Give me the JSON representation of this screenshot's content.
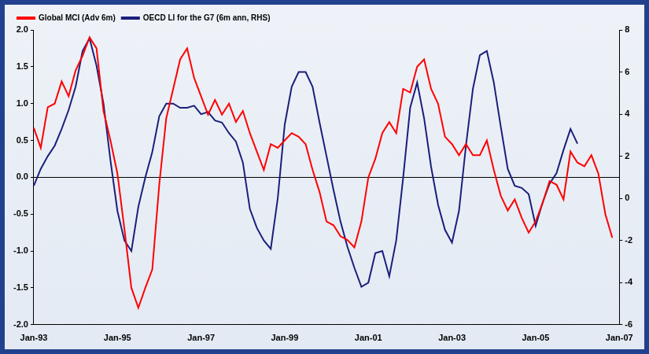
{
  "chart_data": {
    "type": "line",
    "categories": [
      "Jan-93",
      null,
      null,
      null,
      null,
      null,
      null,
      null,
      null,
      null,
      null,
      null,
      "Jan-95",
      null,
      null,
      null,
      null,
      null,
      null,
      null,
      null,
      null,
      null,
      null,
      "Jan-97",
      null,
      null,
      null,
      null,
      null,
      null,
      null,
      null,
      null,
      null,
      null,
      "Jan-99",
      null,
      null,
      null,
      null,
      null,
      null,
      null,
      null,
      null,
      null,
      null,
      "Jan-01",
      null,
      null,
      null,
      null,
      null,
      null,
      null,
      null,
      null,
      null,
      null,
      "Jan-03",
      null,
      null,
      null,
      null,
      null,
      null,
      null,
      null,
      null,
      null,
      null,
      "Jan-05",
      null,
      null,
      null,
      null,
      null,
      null,
      null,
      null,
      null,
      null,
      null,
      "Jan-07"
    ],
    "series": [
      {
        "name": "Global MCI (Adv 6m)",
        "color": "#ff0000",
        "values": [
          0.67,
          0.4,
          0.95,
          1.0,
          1.3,
          1.1,
          1.45,
          1.65,
          1.9,
          1.75,
          0.9,
          0.5,
          0.05,
          -0.7,
          -1.5,
          -1.77,
          -1.5,
          -1.25,
          -0.1,
          0.8,
          1.2,
          1.6,
          1.75,
          1.35,
          1.1,
          0.85,
          1.05,
          0.85,
          1.0,
          0.75,
          0.9,
          0.6,
          0.35,
          0.1,
          0.45,
          0.4,
          0.5,
          0.6,
          0.55,
          0.45,
          0.1,
          -0.2,
          -0.6,
          -0.65,
          -0.8,
          -0.85,
          -0.95,
          -0.6,
          0.0,
          0.25,
          0.6,
          0.75,
          0.6,
          1.2,
          1.15,
          1.5,
          1.6,
          1.2,
          1.0,
          0.55,
          0.45,
          0.3,
          0.45,
          0.3,
          0.3,
          0.5,
          0.1,
          -0.25,
          -0.45,
          -0.3,
          -0.55,
          -0.75,
          -0.6,
          -0.35,
          -0.05,
          -0.1,
          -0.3,
          0.35,
          0.2,
          0.15,
          0.3,
          0.05,
          -0.5,
          -0.82,
          null
        ]
      },
      {
        "name": "OECD LI for the G7 (6m ann, RHS)",
        "color": "#1a1f7a",
        "axis": "y2",
        "values": [
          0.6,
          1.4,
          2.0,
          2.5,
          3.3,
          4.2,
          5.3,
          7.0,
          7.6,
          6.3,
          4.5,
          1.8,
          -0.6,
          -2.0,
          -2.5,
          -0.4,
          1.0,
          2.2,
          3.9,
          4.5,
          4.5,
          4.3,
          4.3,
          4.4,
          4.0,
          4.1,
          3.7,
          3.6,
          3.1,
          2.7,
          1.7,
          -0.5,
          -1.4,
          -2.0,
          -2.4,
          0.0,
          3.5,
          5.3,
          6.0,
          6.0,
          5.3,
          3.6,
          2.0,
          0.4,
          -1.1,
          -2.3,
          -3.3,
          -4.2,
          -4.0,
          -2.6,
          -2.5,
          -3.7,
          -2.0,
          1.0,
          4.3,
          5.5,
          3.8,
          1.5,
          -0.3,
          -1.5,
          -2.1,
          -0.6,
          2.5,
          5.2,
          6.8,
          7.0,
          5.5,
          3.4,
          1.4,
          0.6,
          0.5,
          0.2,
          -1.3,
          -0.2,
          0.7,
          1.2,
          2.3,
          3.3,
          2.6,
          null,
          null,
          null,
          null,
          null,
          null
        ]
      }
    ],
    "ylim": [
      -2,
      2
    ],
    "yticks": [
      {
        "value": -2,
        "label": "-2.0"
      },
      -1.5,
      {
        "value": -1,
        "label": "-1.0"
      },
      -0.5,
      {
        "value": 0,
        "label": "0.0"
      },
      0.5,
      {
        "value": 1,
        "label": "1.0"
      },
      1.5,
      {
        "value": 2,
        "label": "2.0"
      }
    ],
    "y2lim": [
      -6,
      8
    ],
    "y2ticks": [
      -6,
      -4,
      -2,
      0,
      2,
      4,
      6,
      8
    ],
    "grid": false,
    "legend": "top-left"
  }
}
